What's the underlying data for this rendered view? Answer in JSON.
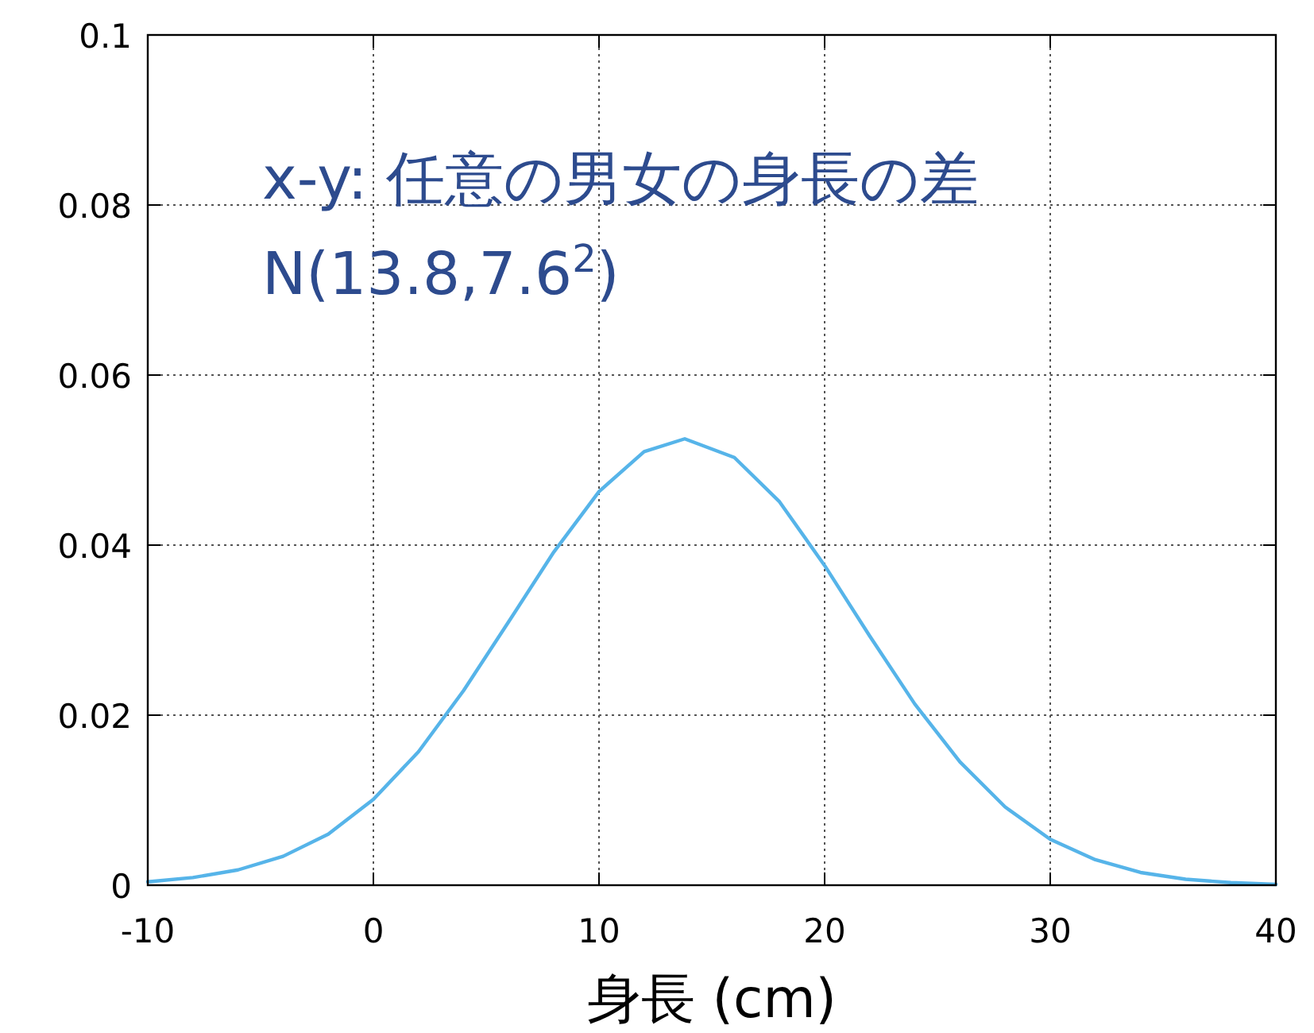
{
  "chart_data": {
    "type": "line",
    "xlabel": "身長 (cm)",
    "annotations": [
      "x-y: 任意の男女の身長の差",
      "N(13.8,7.6$^{2}$)"
    ],
    "xlim": [
      -10,
      40
    ],
    "ylim": [
      0,
      0.1
    ],
    "xticks": [
      -10,
      0,
      10,
      20,
      30,
      40
    ],
    "yticks": [
      0,
      0.02,
      0.04,
      0.06,
      0.08,
      0.1
    ],
    "grid": true,
    "series": [
      {
        "color": "#56b4e9",
        "x": [
          -10,
          -8,
          -6,
          -4,
          -2,
          0,
          2,
          4,
          6,
          8,
          10,
          12,
          13.8,
          16,
          18,
          20,
          22,
          24,
          26,
          28,
          30,
          32,
          34,
          36,
          38,
          40
        ],
        "values": [
          0.0004,
          0.0009,
          0.0018,
          0.0034,
          0.006,
          0.0101,
          0.0157,
          0.0229,
          0.031,
          0.0392,
          0.0463,
          0.051,
          0.0525,
          0.0503,
          0.0451,
          0.0376,
          0.0293,
          0.0213,
          0.0145,
          0.0092,
          0.0054,
          0.003,
          0.0015,
          0.0007,
          0.0003,
          0.0001
        ]
      }
    ]
  }
}
